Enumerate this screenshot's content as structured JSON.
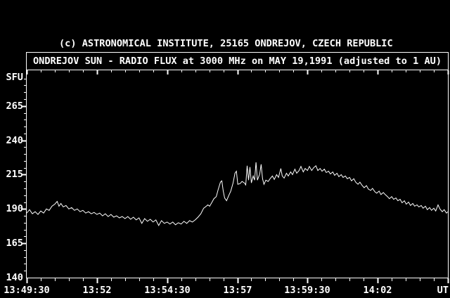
{
  "colors": {
    "background": "#000000",
    "foreground": "#ffffff"
  },
  "header": {
    "copyright": "(c) ASTRONOMICAL INSTITUTE, 25165 ONDREJOV, CZECH REPUBLIC"
  },
  "title_box": {
    "title": "ONDREJOV SUN - RADIO FLUX at 3000 MHz on MAY 19,1991 (adjusted to 1 AU)"
  },
  "chart_data": {
    "type": "line",
    "title": "ONDREJOV SUN - RADIO FLUX at 3000 MHz on MAY 19,1991 (adjusted to 1 AU)",
    "ylabel": "SFU",
    "xlabel": "UT",
    "grid": false,
    "legend": false,
    "ylim": [
      140,
      291
    ],
    "xlim_time": [
      "13:49:30",
      "14:04:30"
    ],
    "xlim_seconds": [
      0,
      900
    ],
    "ytick_labels": [
      140,
      165,
      190,
      215,
      240,
      265
    ],
    "ytick_marks": [
      165,
      190,
      215,
      240,
      265
    ],
    "ytick_minor_step": 5,
    "xticks": [
      {
        "t": 0,
        "label": "13:49:30"
      },
      {
        "t": 150,
        "label": "13:52"
      },
      {
        "t": 300,
        "label": "13:54:30"
      },
      {
        "t": 450,
        "label": "13:57"
      },
      {
        "t": 600,
        "label": "13:59:30"
      },
      {
        "t": 750,
        "label": "14:02"
      },
      {
        "t": 900,
        "label": ""
      }
    ],
    "xtick_minor_step_seconds": 30,
    "series": [
      {
        "name": "radio flux 3000 MHz (SFU)",
        "points": [
          [
            0,
            187
          ],
          [
            6,
            189.5
          ],
          [
            12,
            186.5
          ],
          [
            18,
            188
          ],
          [
            24,
            186
          ],
          [
            30,
            188.5
          ],
          [
            36,
            187
          ],
          [
            42,
            190
          ],
          [
            48,
            189
          ],
          [
            54,
            192
          ],
          [
            60,
            193.5
          ],
          [
            65,
            195.5
          ],
          [
            69,
            192
          ],
          [
            73,
            194
          ],
          [
            78,
            191.5
          ],
          [
            84,
            192.5
          ],
          [
            90,
            190
          ],
          [
            96,
            191
          ],
          [
            102,
            189
          ],
          [
            108,
            190
          ],
          [
            114,
            188
          ],
          [
            120,
            189
          ],
          [
            126,
            187
          ],
          [
            132,
            188
          ],
          [
            138,
            186.5
          ],
          [
            144,
            187.5
          ],
          [
            150,
            186
          ],
          [
            156,
            187
          ],
          [
            162,
            185
          ],
          [
            168,
            186.5
          ],
          [
            174,
            184.5
          ],
          [
            180,
            186
          ],
          [
            186,
            184
          ],
          [
            192,
            185
          ],
          [
            198,
            183.5
          ],
          [
            204,
            184.5
          ],
          [
            210,
            183
          ],
          [
            216,
            184.5
          ],
          [
            222,
            182.5
          ],
          [
            228,
            184
          ],
          [
            234,
            182
          ],
          [
            240,
            183.5
          ],
          [
            246,
            179.5
          ],
          [
            252,
            183
          ],
          [
            258,
            181
          ],
          [
            264,
            182.5
          ],
          [
            270,
            180.5
          ],
          [
            276,
            182
          ],
          [
            282,
            178
          ],
          [
            288,
            181.5
          ],
          [
            294,
            179.5
          ],
          [
            300,
            180.5
          ],
          [
            306,
            179
          ],
          [
            312,
            180.5
          ],
          [
            318,
            178.5
          ],
          [
            324,
            180
          ],
          [
            330,
            179
          ],
          [
            336,
            181
          ],
          [
            342,
            179.5
          ],
          [
            348,
            181.5
          ],
          [
            354,
            180.5
          ],
          [
            360,
            182
          ],
          [
            366,
            184
          ],
          [
            372,
            186.5
          ],
          [
            378,
            190.5
          ],
          [
            382,
            191.5
          ],
          [
            387,
            193
          ],
          [
            391,
            192
          ],
          [
            396,
            195
          ],
          [
            400,
            197.5
          ],
          [
            405,
            199
          ],
          [
            409,
            204
          ],
          [
            414,
            209.5
          ],
          [
            417,
            210.5
          ],
          [
            420,
            203
          ],
          [
            423,
            198
          ],
          [
            427,
            196
          ],
          [
            432,
            200
          ],
          [
            436,
            203
          ],
          [
            441,
            209
          ],
          [
            445,
            216
          ],
          [
            448,
            217.5
          ],
          [
            451,
            208
          ],
          [
            456,
            208.5
          ],
          [
            460,
            210
          ],
          [
            465,
            209
          ],
          [
            468,
            207.5
          ],
          [
            471,
            221.5
          ],
          [
            474,
            211
          ],
          [
            477,
            220.5
          ],
          [
            480,
            209
          ],
          [
            484,
            214
          ],
          [
            487,
            211
          ],
          [
            490,
            224
          ],
          [
            493,
            211
          ],
          [
            498,
            215.5
          ],
          [
            501,
            222.5
          ],
          [
            504,
            212
          ],
          [
            507,
            208
          ],
          [
            511,
            211
          ],
          [
            516,
            210
          ],
          [
            520,
            212
          ],
          [
            525,
            214
          ],
          [
            529,
            211.5
          ],
          [
            534,
            215
          ],
          [
            538,
            213
          ],
          [
            543,
            219.5
          ],
          [
            546,
            214
          ],
          [
            550,
            212.5
          ],
          [
            555,
            216
          ],
          [
            559,
            214
          ],
          [
            564,
            217
          ],
          [
            568,
            215
          ],
          [
            573,
            219
          ],
          [
            577,
            216
          ],
          [
            582,
            218
          ],
          [
            586,
            221
          ],
          [
            591,
            217
          ],
          [
            595,
            219.5
          ],
          [
            600,
            218
          ],
          [
            604,
            221
          ],
          [
            609,
            218
          ],
          [
            613,
            220
          ],
          [
            618,
            221.5
          ],
          [
            622,
            218
          ],
          [
            627,
            219.5
          ],
          [
            631,
            217.5
          ],
          [
            636,
            219
          ],
          [
            640,
            216.5
          ],
          [
            645,
            217.5
          ],
          [
            649,
            215.5
          ],
          [
            654,
            217
          ],
          [
            658,
            214.5
          ],
          [
            663,
            216
          ],
          [
            667,
            213.5
          ],
          [
            672,
            215
          ],
          [
            676,
            213
          ],
          [
            681,
            214
          ],
          [
            685,
            212
          ],
          [
            690,
            213
          ],
          [
            694,
            210.5
          ],
          [
            699,
            212
          ],
          [
            703,
            209.5
          ],
          [
            708,
            208
          ],
          [
            712,
            209.5
          ],
          [
            717,
            207
          ],
          [
            721,
            205.5
          ],
          [
            726,
            207
          ],
          [
            730,
            204.5
          ],
          [
            735,
            203.5
          ],
          [
            739,
            205
          ],
          [
            744,
            202.5
          ],
          [
            748,
            201.5
          ],
          [
            753,
            203
          ],
          [
            757,
            200.5
          ],
          [
            762,
            202
          ],
          [
            766,
            200.5
          ],
          [
            771,
            199
          ],
          [
            775,
            197.5
          ],
          [
            780,
            199
          ],
          [
            784,
            197
          ],
          [
            789,
            198
          ],
          [
            793,
            196
          ],
          [
            798,
            197
          ],
          [
            802,
            194.5
          ],
          [
            807,
            196
          ],
          [
            811,
            193.5
          ],
          [
            816,
            195
          ],
          [
            820,
            192.5
          ],
          [
            825,
            194
          ],
          [
            829,
            192
          ],
          [
            834,
            193
          ],
          [
            838,
            191.5
          ],
          [
            843,
            192.5
          ],
          [
            847,
            190.5
          ],
          [
            852,
            192
          ],
          [
            856,
            189.5
          ],
          [
            861,
            191
          ],
          [
            865,
            189
          ],
          [
            870,
            190.5
          ],
          [
            874,
            188.5
          ],
          [
            879,
            193
          ],
          [
            883,
            190
          ],
          [
            888,
            188
          ],
          [
            892,
            189.5
          ],
          [
            897,
            187
          ],
          [
            900,
            188
          ]
        ]
      }
    ]
  }
}
